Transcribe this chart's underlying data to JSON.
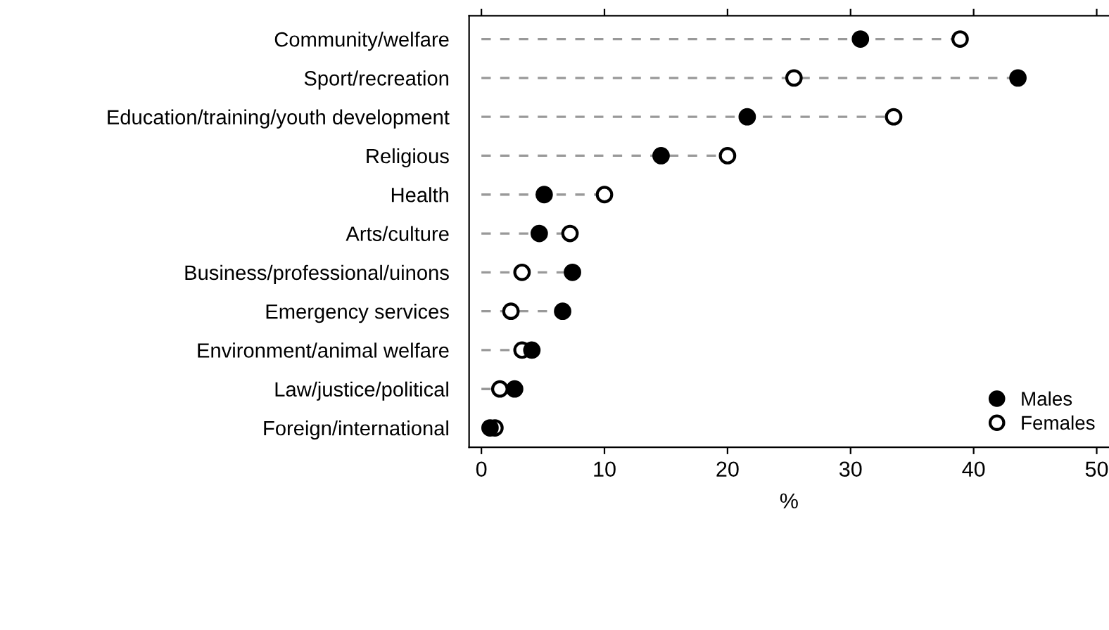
{
  "chart_data": {
    "type": "lollipop",
    "xlabel": "%",
    "orientation": "horizontal",
    "categories": [
      "Community/welfare",
      "Sport/recreation",
      "Education/training/youth development",
      "Religious",
      "Health",
      "Arts/culture",
      "Business/professional/uinons",
      "Emergency services",
      "Environment/animal welfare",
      "Law/justice/political",
      "Foreign/international"
    ],
    "series": [
      {
        "name": "Males",
        "color": "#000000",
        "values": [
          30.8,
          43.6,
          21.6,
          14.6,
          5.1,
          4.7,
          7.4,
          6.6,
          4.1,
          2.7,
          0.7
        ]
      },
      {
        "name": "Females",
        "color": "#ffffff",
        "values": [
          38.9,
          25.4,
          33.5,
          20.0,
          10.0,
          7.2,
          3.3,
          2.4,
          3.3,
          1.5,
          1.1
        ]
      }
    ],
    "xlim": [
      -1,
      51
    ],
    "xticks": [
      0,
      10,
      20,
      30,
      40,
      50
    ],
    "marker": "circle",
    "line_style": "dashed",
    "legend": "bottom right"
  }
}
